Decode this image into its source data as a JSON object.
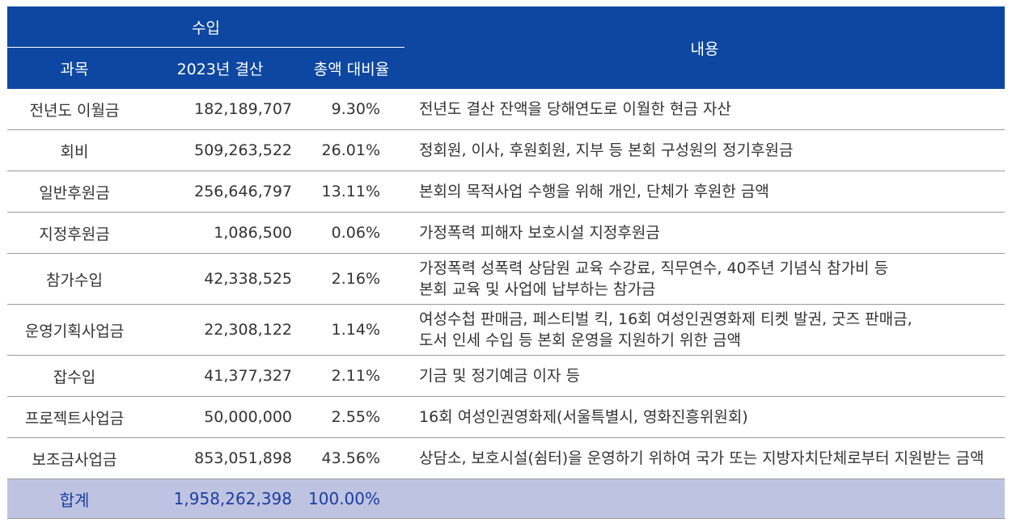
{
  "header": {
    "income": "수입",
    "subject": "과목",
    "settlement_2023": "2023년 결산",
    "ratio": "총액 대비율",
    "content": "내용"
  },
  "rows": [
    {
      "subject": "전년도 이월금",
      "amount": "182,189,707",
      "ratio": "9.30%",
      "desc": [
        "전년도 결산 잔액을 당해연도로 이월한 현금 자산"
      ]
    },
    {
      "subject": "회비",
      "amount": "509,263,522",
      "ratio": "26.01%",
      "desc": [
        "정회원, 이사, 후원회원, 지부 등 본회 구성원의 정기후원금"
      ]
    },
    {
      "subject": "일반후원금",
      "amount": "256,646,797",
      "ratio": "13.11%",
      "desc": [
        "본회의 목적사업 수행을 위해 개인, 단체가 후원한 금액"
      ]
    },
    {
      "subject": "지정후원금",
      "amount": "1,086,500",
      "ratio": "0.06%",
      "desc": [
        "가정폭력 피해자 보호시설 지정후원금"
      ]
    },
    {
      "subject": "참가수입",
      "amount": "42,338,525",
      "ratio": "2.16%",
      "desc": [
        "가정폭력 성폭력 상담원 교육 수강료, 직무연수, 40주년 기념식 참가비 등",
        "본회 교육 및 사업에 납부하는 참가금"
      ]
    },
    {
      "subject": "운영기획사업금",
      "amount": "22,308,122",
      "ratio": "1.14%",
      "desc": [
        "여성수첩 판매금, 페스티벌 킥, 16회 여성인권영화제 티켓 발권, 굿즈 판매금,",
        "도서 인세 수입 등 본회 운영을 지원하기 위한 금액"
      ]
    },
    {
      "subject": "잡수입",
      "amount": "41,377,327",
      "ratio": "2.11%",
      "desc": [
        "기금 및 정기예금 이자 등"
      ]
    },
    {
      "subject": "프로젝트사업금",
      "amount": "50,000,000",
      "ratio": "2.55%",
      "desc": [
        "16회 여성인권영화제(서울특별시, 영화진흥위원회)"
      ]
    },
    {
      "subject": "보조금사업금",
      "amount": "853,051,898",
      "ratio": "43.56%",
      "desc": [
        "상담소, 보호시설(쉼터)을 운영하기 위하여 국가 또는 지방자치단체로부터 지원받는 금액"
      ]
    }
  ],
  "total": {
    "label": "합계",
    "amount": "1,958,262,398",
    "ratio": "100.00%"
  },
  "colors": {
    "header_bg": "#0e47a1",
    "total_bg": "#bfc3e2",
    "total_text": "#1b3fa0"
  }
}
